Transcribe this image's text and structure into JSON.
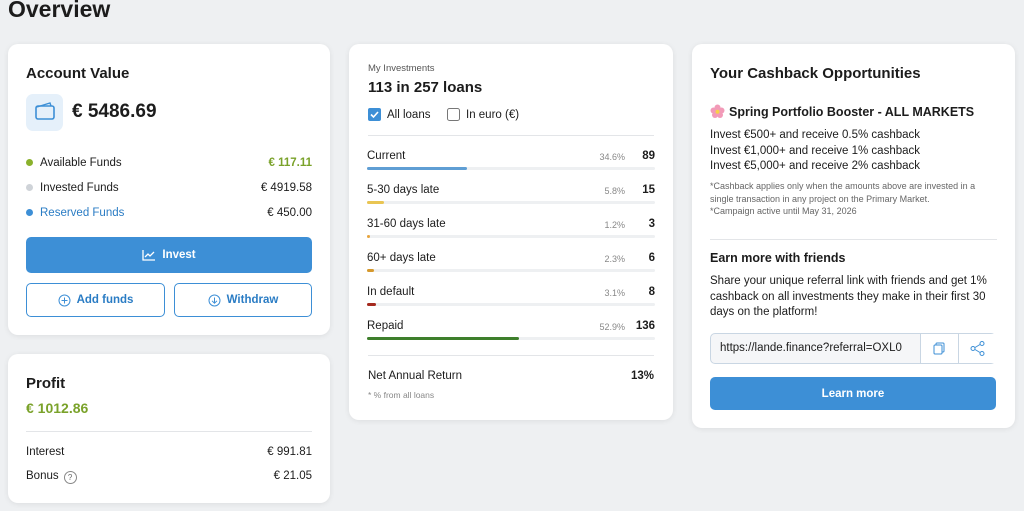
{
  "header": {
    "title": "Overview"
  },
  "account": {
    "title": "Account Value",
    "total": "€ 5486.69",
    "rows": [
      {
        "label": "Available Funds",
        "value": "€ 117.11"
      },
      {
        "label": "Invested Funds",
        "value": "€ 4919.58"
      },
      {
        "label": "Reserved Funds",
        "value": "€ 450.00"
      }
    ],
    "invest": "Invest",
    "add_funds": "Add funds",
    "withdraw": "Withdraw"
  },
  "profit": {
    "title": "Profit",
    "total": "€ 1012.86",
    "rows": [
      {
        "label": "Interest",
        "value": "€ 991.81"
      },
      {
        "label": "Bonus",
        "value": "€ 21.05"
      }
    ]
  },
  "investments": {
    "label": "My Investments",
    "title": "113 in 257 loans",
    "filters": [
      "All loans",
      "In euro (€)"
    ],
    "rows": [
      {
        "name": "Current",
        "percent": 34.6,
        "percent_label": "34.6%",
        "count": 89
      },
      {
        "name": "5-30 days late",
        "percent": 5.8,
        "percent_label": "5.8%",
        "count": 15
      },
      {
        "name": "31-60 days late",
        "percent": 1.2,
        "percent_label": "1.2%",
        "count": 3
      },
      {
        "name": "60+ days late",
        "percent": 2.3,
        "percent_label": "2.3%",
        "count": 6
      },
      {
        "name": "In default",
        "percent": 3.1,
        "percent_label": "3.1%",
        "count": 8
      },
      {
        "name": "Repaid",
        "percent": 52.9,
        "percent_label": "52.9%",
        "count": 136
      }
    ],
    "net_return_label": "Net Annual Return",
    "net_return": "13%",
    "note": "* % from all loans"
  },
  "cashback": {
    "title": "Your Cashback Opportunities",
    "campaign": "Spring Portfolio Booster - ALL MARKETS",
    "offers": [
      "Invest €500+ and receive 0.5% cashback",
      "Invest €1,000+ and receive 1% cashback",
      "Invest €5,000+ and receive 2% cashback"
    ],
    "notes": [
      "*Cashback applies only when the amounts above are invested in a single transaction in any project on the Primary Market.",
      "*Campaign active until May 31, 2026"
    ],
    "friends_title": "Earn more with friends",
    "friends_text": "Share your unique referral link with friends and get 1% cashback on all investments they make in their first 30 days on the platform!",
    "referral_link": "https://lande.finance?referral=OXL0",
    "learn_more": "Learn more"
  }
}
